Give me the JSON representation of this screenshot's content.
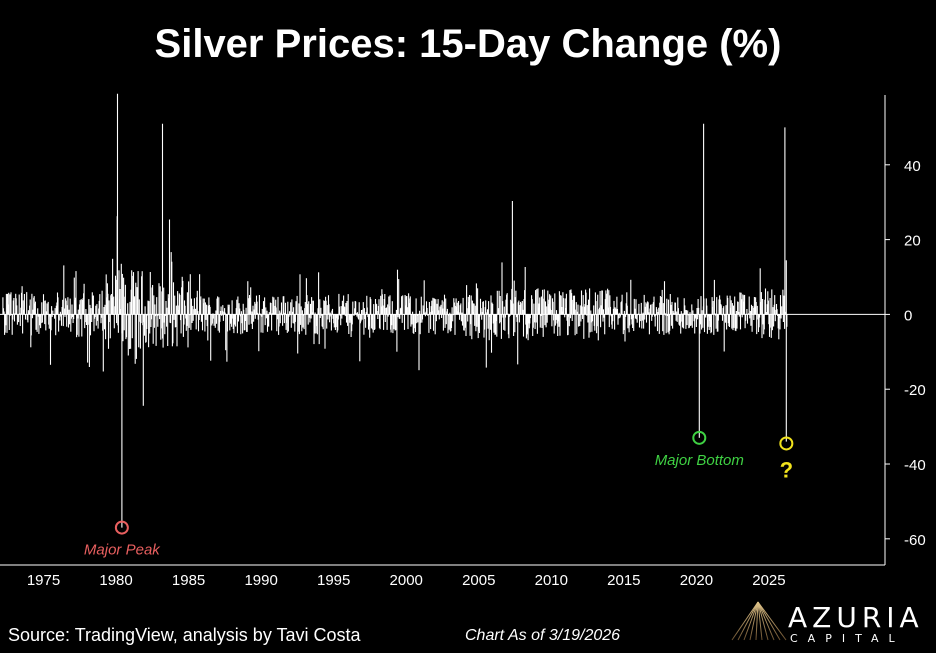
{
  "chart_data": {
    "type": "bar",
    "title": "Silver Prices: 15-Day Change (%)",
    "xlabel": "",
    "ylabel": "",
    "xlim": [
      1972,
      2033
    ],
    "ylim": [
      -67,
      60
    ],
    "y_ticks": [
      40,
      20,
      0,
      -20,
      -40,
      -60
    ],
    "x_tick_labels": [
      "1975",
      "1980",
      "1985",
      "1990",
      "1995",
      "2000",
      "2005",
      "2010",
      "2015",
      "2020",
      "2025"
    ],
    "y_axis_side": "right",
    "grid": false,
    "notable_points": [
      {
        "year": 1980.1,
        "value": 59
      },
      {
        "year": 1980.4,
        "value": -57
      },
      {
        "year": 1983.2,
        "value": 51
      },
      {
        "year": 2020.2,
        "value": -33
      },
      {
        "year": 2020.5,
        "value": 51
      },
      {
        "year": 2026.1,
        "value": 50
      },
      {
        "year": 2026.2,
        "value": -34
      }
    ],
    "annotations": [
      {
        "id": "peak",
        "label": "Major Peak",
        "year": 1980.4,
        "value": -57,
        "color": "#e85f5f"
      },
      {
        "id": "bottom",
        "label": "Major Bottom",
        "year": 2020.2,
        "value": -33,
        "color": "#3fd143"
      },
      {
        "id": "now",
        "label": "?",
        "year": 2026.2,
        "value": -34.5,
        "color": "#f1e21c"
      }
    ]
  },
  "footer": {
    "source": "Source: TradingView, analysis by Tavi Costa",
    "as_of": "Chart As of 3/19/2026"
  },
  "logo": {
    "name": "AZURIA",
    "subtitle": "CAPITAL"
  },
  "colors": {
    "background": "#000000",
    "series": "#ffffff",
    "axis": "#ffffff",
    "peak": "#e85f5f",
    "bottom": "#3fd143",
    "now": "#f1e21c",
    "logo_gold": "#b8955a"
  }
}
